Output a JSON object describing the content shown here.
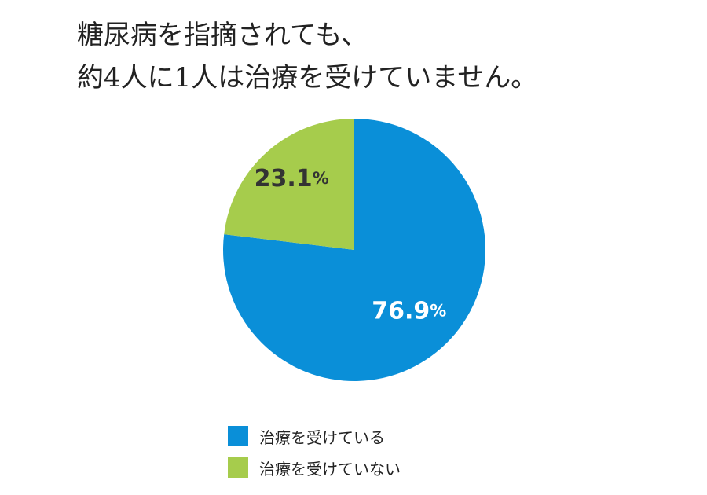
{
  "chart_data": {
    "type": "pie",
    "title_lines": [
      "糖尿病を指摘されても、",
      "約4人に1人は治療を受けていません。"
    ],
    "slices": [
      {
        "label": "治療を受けている",
        "value": 76.9,
        "display": "76.9",
        "unit": "%",
        "color": "#0a8fd8",
        "text_color": "#ffffff"
      },
      {
        "label": "治療を受けていない",
        "value": 23.1,
        "display": "23.1",
        "unit": "%",
        "color": "#a6cc4c",
        "text_color": "#333333"
      }
    ],
    "start_angle_deg": 0,
    "direction": "clockwise",
    "legend_position": "bottom"
  }
}
